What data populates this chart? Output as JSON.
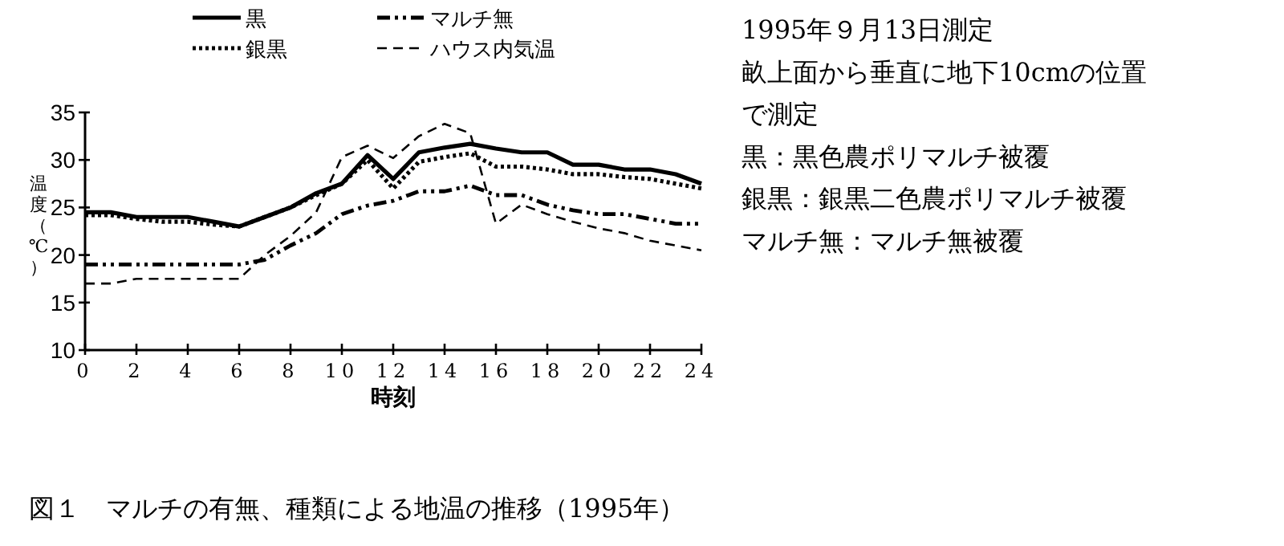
{
  "chart_data": {
    "type": "line",
    "title": "図１　マルチの有無、種類による地温の推移（1995年）",
    "xlabel": "時刻",
    "ylabel": "温度（℃）",
    "x": [
      0,
      1,
      2,
      3,
      4,
      5,
      6,
      7,
      8,
      9,
      10,
      11,
      12,
      13,
      14,
      15,
      16,
      17,
      18,
      19,
      20,
      21,
      22,
      23,
      24
    ],
    "series": [
      {
        "name": "黒",
        "color": "#000000",
        "line_style": "solid",
        "values": [
          24.5,
          24.5,
          24,
          24,
          24,
          23.5,
          23,
          24,
          25,
          26.5,
          27.5,
          30.5,
          28,
          30.8,
          31.3,
          31.7,
          31.2,
          30.8,
          30.8,
          29.5,
          29.5,
          29,
          29,
          28.5,
          27.5
        ]
      },
      {
        "name": "銀黒",
        "color": "#000000",
        "line_style": "dotted",
        "values": [
          24.2,
          24.2,
          23.8,
          23.5,
          23.5,
          23.2,
          23,
          24,
          25,
          26.3,
          27.5,
          30,
          27,
          29.8,
          30.3,
          30.7,
          29.3,
          29.3,
          29,
          28.5,
          28.5,
          28.2,
          28,
          27.5,
          27
        ]
      },
      {
        "name": "マルチ無",
        "color": "#000000",
        "line_style": "dashdot",
        "values": [
          19,
          19,
          19,
          19,
          19,
          19,
          19,
          19.5,
          21,
          22.3,
          24.3,
          25.2,
          25.7,
          26.7,
          26.7,
          27.3,
          26.3,
          26.3,
          25.3,
          24.7,
          24.3,
          24.3,
          23.8,
          23.3,
          23.3
        ]
      },
      {
        "name": "ハウス内気温",
        "color": "#000000",
        "line_style": "dashed",
        "values": [
          17,
          17,
          17.5,
          17.5,
          17.5,
          17.5,
          17.5,
          20,
          22,
          24.5,
          30.3,
          31.5,
          30.2,
          32.5,
          33.8,
          32.8,
          23.3,
          25.3,
          24.3,
          23.5,
          22.8,
          22.3,
          21.5,
          21,
          20.5
        ]
      }
    ],
    "xlim": [
      0,
      24
    ],
    "xticks": [
      0,
      2,
      4,
      6,
      8,
      10,
      12,
      14,
      16,
      18,
      20,
      22,
      24
    ],
    "ylim": [
      10,
      35
    ],
    "yticks": [
      10,
      15,
      20,
      25,
      30,
      35
    ],
    "grid": false,
    "legend": "top",
    "annotations": [
      "1995年９月13日測定",
      "畝上面から垂直に地下10cmの位置",
      "で測定",
      "黒：黒色農ポリマルチ被覆",
      "銀黒：銀黒二色農ポリマルチ被覆",
      "マルチ無：マルチ無被覆"
    ]
  }
}
